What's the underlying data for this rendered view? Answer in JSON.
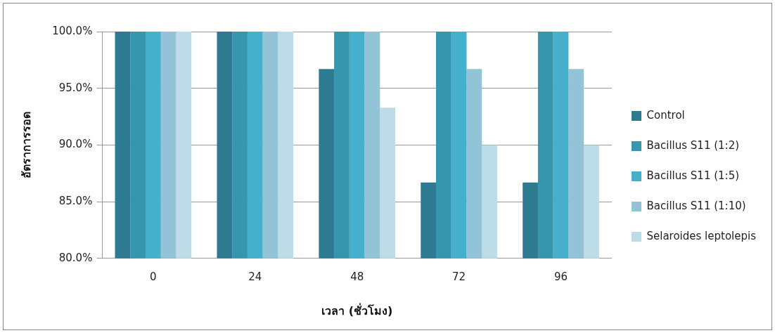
{
  "chart_data": {
    "type": "bar",
    "xlabel": "เวลา (ชั่วโมง)",
    "ylabel": "อัตราการรอด",
    "categories": [
      "0",
      "24",
      "48",
      "72",
      "96"
    ],
    "series": [
      {
        "name": "Control",
        "color": "#2e7a90",
        "values": [
          100,
          100,
          96.7,
          86.7,
          86.7
        ]
      },
      {
        "name": "Bacillus S11 (1:2)",
        "color": "#3596ad",
        "values": [
          100,
          100,
          100,
          100,
          100
        ]
      },
      {
        "name": "Bacillus S11 (1:5)",
        "color": "#45b0cc",
        "values": [
          100,
          100,
          100,
          100,
          100
        ]
      },
      {
        "name": "Bacillus S11 (1:10)",
        "color": "#92c3d6",
        "values": [
          100,
          100,
          100,
          96.7,
          96.7
        ]
      },
      {
        "name": "Selaroides leptolepis",
        "color": "#bcdce8",
        "values": [
          100,
          100,
          93.3,
          90.0,
          90.0
        ]
      }
    ],
    "ylim": [
      80,
      100
    ],
    "yticks": [
      {
        "value": 80,
        "label": "80.0%"
      },
      {
        "value": 85,
        "label": "85.0%"
      },
      {
        "value": 90,
        "label": "90.0%"
      },
      {
        "value": 95,
        "label": "95.0%"
      },
      {
        "value": 100,
        "label": "100.0%"
      }
    ],
    "grid": "y",
    "legend": "right"
  }
}
